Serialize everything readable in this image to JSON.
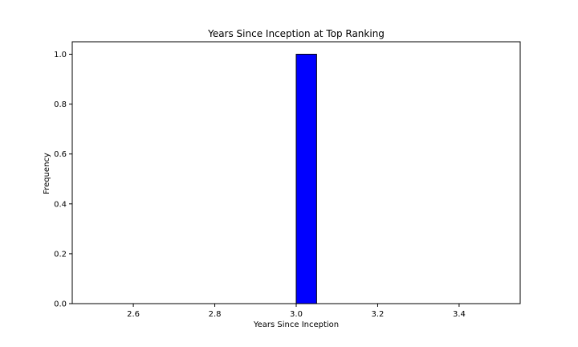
{
  "chart_data": {
    "type": "bar",
    "title": "Years Since Inception at Top Ranking",
    "xlabel": "Years Since Inception",
    "ylabel": "Frequency",
    "bins": [
      {
        "x0": 3.0,
        "x1": 3.05,
        "value": 1.0
      }
    ],
    "xlim": [
      2.45,
      3.55
    ],
    "ylim": [
      0.0,
      1.05
    ],
    "x_ticks": [
      2.6,
      2.8,
      3.0,
      3.2,
      3.4
    ],
    "x_tick_labels": [
      "2.6",
      "2.8",
      "3.0",
      "3.2",
      "3.4"
    ],
    "y_ticks": [
      0.0,
      0.2,
      0.4,
      0.6,
      0.8,
      1.0
    ],
    "y_tick_labels": [
      "0.0",
      "0.2",
      "0.4",
      "0.6",
      "0.8",
      "1.0"
    ],
    "bar_color": "#0000ff",
    "bar_edge_color": "#000000",
    "grid": false,
    "legend": "none"
  }
}
